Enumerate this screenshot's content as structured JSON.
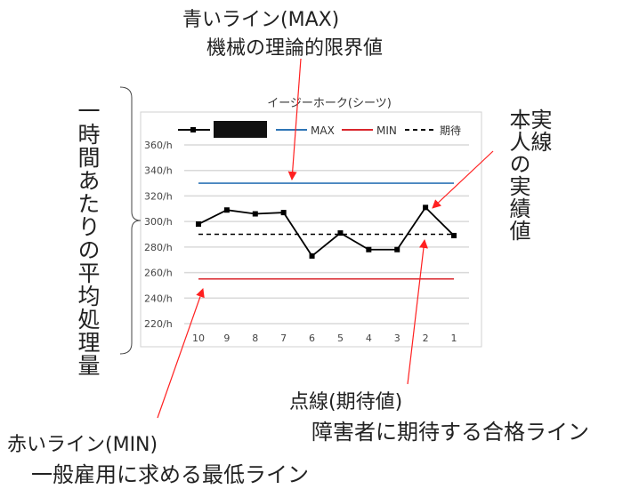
{
  "annotations": {
    "max_title": "青いライン(MAX)",
    "max_desc": "機械の理論的限界値",
    "actual_title": "実線",
    "actual_desc": "本人の実績値",
    "y_desc": "一時間あたりの平均処理量",
    "expected_title": "点線(期待値)",
    "expected_desc": "障害者に期待する合格ライン",
    "min_title": "赤いライン(MIN)",
    "min_desc": "一般雇用に求める最低ライン",
    "arrow_color": "#ff2020"
  },
  "chart_data": {
    "type": "line",
    "title": "イージーホーク(シーツ)",
    "categories": [
      "10",
      "9",
      "8",
      "7",
      "6",
      "5",
      "4",
      "3",
      "2",
      "1"
    ],
    "ylim": [
      220,
      360
    ],
    "yticks": [
      "220/h",
      "240/h",
      "260/h",
      "280/h",
      "300/h",
      "320/h",
      "340/h",
      "360/h"
    ],
    "grid": true,
    "legend_placement": "top",
    "series": [
      {
        "values": [
          298,
          309,
          306,
          307,
          273,
          291,
          278,
          278,
          311,
          289
        ],
        "color": "#000000",
        "style": "solid-markers",
        "legend_redacted": true
      },
      {
        "name": "MAX",
        "values": [
          330,
          330,
          330,
          330,
          330,
          330,
          330,
          330,
          330,
          330
        ],
        "color": "#2e75b6",
        "style": "solid"
      },
      {
        "name": "MIN",
        "values": [
          255,
          255,
          255,
          255,
          255,
          255,
          255,
          255,
          255,
          255
        ],
        "color": "#d9262c",
        "style": "solid"
      },
      {
        "name": "期待",
        "values": [
          290,
          290,
          290,
          290,
          290,
          290,
          290,
          290,
          290,
          290
        ],
        "color": "#000000",
        "style": "dashed"
      }
    ]
  }
}
